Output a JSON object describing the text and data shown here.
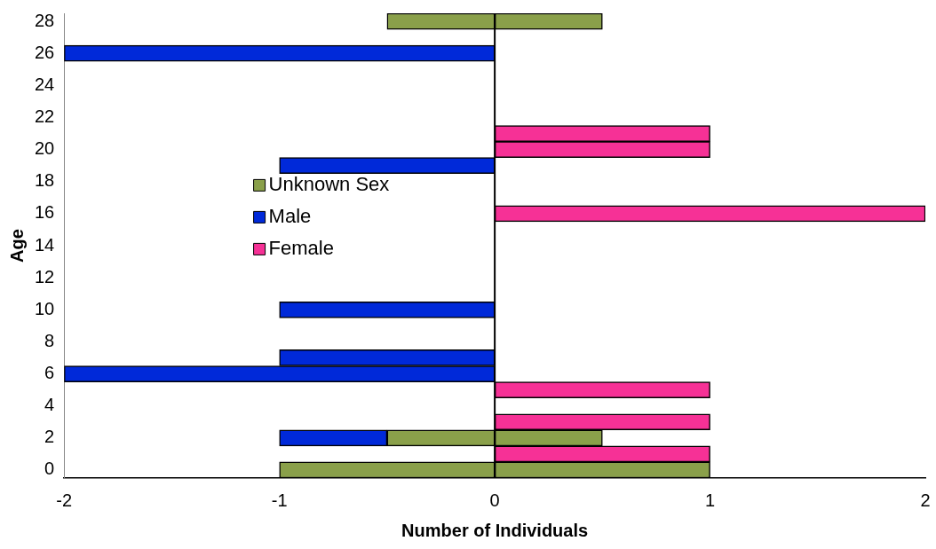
{
  "chart_data": {
    "type": "bar",
    "orientation": "horizontal",
    "stacked": true,
    "xlabel": "Number of Individuals",
    "ylabel": "Age",
    "categories": [
      "28",
      null,
      "26",
      null,
      "24",
      null,
      "22",
      null,
      "20",
      null,
      "18",
      null,
      "16",
      null,
      "14",
      null,
      "12",
      null,
      "10",
      null,
      "8",
      null,
      "6",
      null,
      "4",
      null,
      "2",
      null,
      "0"
    ],
    "series": [
      {
        "name": "Unknown Sex",
        "color": "#8aa04a",
        "values": [
          0.5,
          null,
          null,
          null,
          null,
          null,
          null,
          null,
          null,
          null,
          null,
          null,
          null,
          null,
          null,
          null,
          null,
          null,
          null,
          null,
          null,
          null,
          null,
          null,
          null,
          null,
          0.5,
          null,
          1
        ]
      },
      {
        "color": "#8aa04a",
        "values": [
          -0.5,
          null,
          null,
          null,
          null,
          null,
          null,
          null,
          null,
          null,
          null,
          null,
          null,
          null,
          null,
          null,
          null,
          null,
          null,
          null,
          null,
          null,
          null,
          null,
          null,
          null,
          -0.5,
          null,
          -1
        ]
      },
      {
        "name": "Male",
        "color": "#0029d9",
        "values": [
          null,
          null,
          -2,
          null,
          null,
          null,
          null,
          null,
          null,
          -1,
          null,
          null,
          null,
          null,
          null,
          null,
          null,
          null,
          -1,
          null,
          null,
          -1,
          -2,
          null,
          null,
          null,
          -0.5,
          null,
          null
        ]
      },
      {
        "name": "Female",
        "color": "#f63196",
        "values": [
          null,
          null,
          null,
          null,
          null,
          null,
          null,
          1,
          1,
          null,
          null,
          null,
          2,
          null,
          null,
          null,
          null,
          null,
          null,
          null,
          null,
          null,
          null,
          1,
          null,
          1,
          null,
          1,
          null
        ]
      }
    ],
    "xlim": [
      -2,
      2
    ],
    "xticks": [
      -2,
      -1,
      0,
      1,
      2
    ],
    "ref_lines": [
      {
        "axis": "x",
        "value": 0,
        "color": "#000000"
      }
    ],
    "legend": "left"
  }
}
